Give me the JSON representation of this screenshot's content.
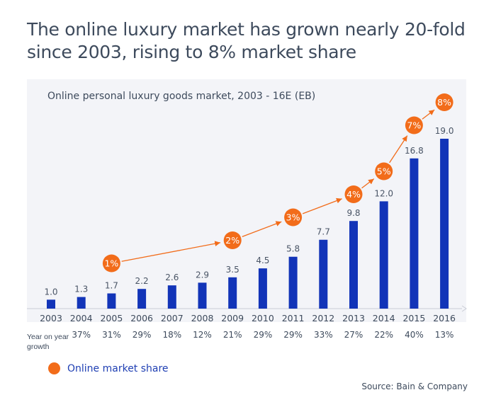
{
  "headline": {
    "line1": "The online luxury market has grown nearly 20-fold",
    "line2": "since 2003, rising to 8% market share"
  },
  "source": "Source: Bain & Company",
  "colors": {
    "bar": "#1234b8",
    "share": "#f26c1a",
    "text": "#3d4a5c",
    "panel": "#f3f4f8"
  },
  "chart_data": {
    "type": "bar",
    "title": "Online personal luxury goods market, 2003 - 16E (EB)",
    "categories": [
      "2003",
      "2004",
      "2005",
      "2006",
      "2007",
      "2008",
      "2009",
      "2010",
      "2011",
      "2012",
      "2013",
      "2014",
      "2015",
      "2016"
    ],
    "values": [
      1.0,
      1.3,
      1.7,
      2.2,
      2.6,
      2.9,
      3.5,
      4.5,
      5.8,
      7.7,
      9.8,
      12.0,
      16.8,
      19.0
    ],
    "value_labels": [
      "1.0",
      "1.3",
      "1.7",
      "2.2",
      "2.6",
      "2.9",
      "3.5",
      "4.5",
      "5.8",
      "7.7",
      "9.8",
      "12.0",
      "16.8",
      "19.0"
    ],
    "growth_label": "Year on year growth",
    "growth": [
      "",
      "37%",
      "31%",
      "29%",
      "18%",
      "12%",
      "21%",
      "29%",
      "29%",
      "33%",
      "27%",
      "22%",
      "40%",
      "13%"
    ],
    "ylim": [
      0,
      20
    ],
    "legend": {
      "position": "bottom-left",
      "label": "Online market share"
    },
    "share_markers": [
      {
        "year": "2005",
        "label": "1%",
        "level": 1
      },
      {
        "year": "2009",
        "label": "2%",
        "level": 2
      },
      {
        "year": "2011",
        "label": "3%",
        "level": 3
      },
      {
        "year": "2013",
        "label": "4%",
        "level": 4
      },
      {
        "year": "2014",
        "label": "5%",
        "level": 5
      },
      {
        "year": "2015",
        "label": "7%",
        "level": 7
      },
      {
        "year": "2016",
        "label": "8%",
        "level": 8
      }
    ]
  }
}
